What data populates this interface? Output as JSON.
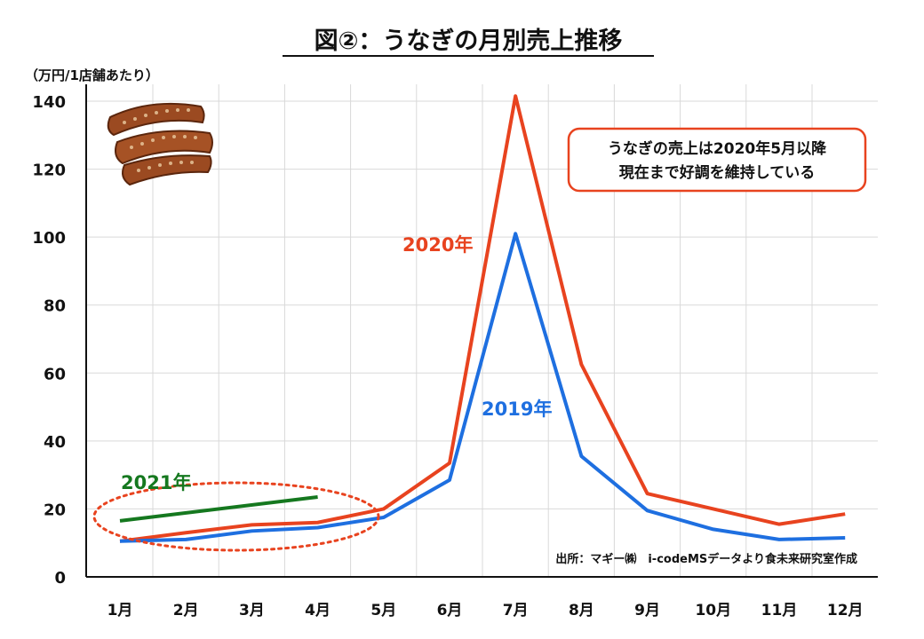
{
  "chart_data": {
    "type": "line",
    "title": "図②：うなぎの月別売上推移",
    "ylabel": "（万円/1店舗あたり）",
    "xlabel": "",
    "categories": [
      "1月",
      "2月",
      "3月",
      "4月",
      "5月",
      "6月",
      "7月",
      "8月",
      "9月",
      "10月",
      "11月",
      "12月"
    ],
    "ylim": [
      0,
      140
    ],
    "yticks": [
      0,
      20,
      40,
      60,
      80,
      100,
      120,
      140
    ],
    "grid": true,
    "series": [
      {
        "name": "2019年",
        "color": "#1e6fe0",
        "values": [
          10.5,
          11,
          13.5,
          14.5,
          17.5,
          28.5,
          101,
          35.5,
          19.5,
          14,
          11,
          11.5
        ]
      },
      {
        "name": "2020年",
        "color": "#e8431f",
        "values": [
          10.5,
          13,
          15.3,
          16,
          20,
          33.5,
          141.5,
          62.5,
          24.5,
          20,
          15.5,
          18.5
        ]
      },
      {
        "name": "2021年",
        "color": "#15781f",
        "values": [
          16.5,
          null,
          null,
          23.5,
          null,
          null,
          null,
          null,
          null,
          null,
          null,
          null
        ]
      }
    ],
    "annotation": [
      "うなぎの売上は2020年5月以降",
      "現在まで好調を維持している"
    ],
    "source": "出所：マギー㈱　i-codeMSデータより食未来研究室作成"
  },
  "colors": {
    "axis": "#111111",
    "grid": "#d9d9d9",
    "note_border": "#e8431f",
    "circle": "#e8431f"
  },
  "image": {
    "icon": "grilled-eel-icon"
  }
}
